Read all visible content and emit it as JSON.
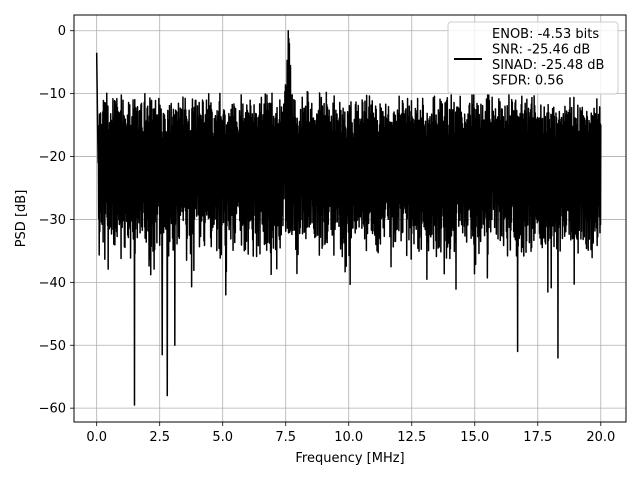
{
  "chart_data": {
    "type": "line",
    "title": "",
    "xlabel": "Frequency [MHz]",
    "ylabel": "PSD [dB]",
    "xlim": [
      -0.9,
      21.0
    ],
    "ylim": [
      -62.2,
      2.5
    ],
    "xticks": [
      0.0,
      2.5,
      5.0,
      7.5,
      10.0,
      12.5,
      15.0,
      17.5,
      20.0
    ],
    "xtick_labels": [
      "0.0",
      "2.5",
      "5.0",
      "7.5",
      "10.0",
      "12.5",
      "15.0",
      "17.5",
      "20.0"
    ],
    "yticks": [
      0,
      -10,
      -20,
      -30,
      -40,
      -50,
      -60
    ],
    "ytick_labels": [
      "0",
      "−10",
      "−20",
      "−30",
      "−40",
      "−50",
      "−60"
    ],
    "grid": true,
    "legend_position": "top-right",
    "series": [
      {
        "color": "#000000",
        "x_range": [
          0.0,
          20.0
        ],
        "upper_envelope_db": -12,
        "lower_envelope_db": -35,
        "features": [
          {
            "x": 0.0,
            "y": -3.5
          },
          {
            "x": 7.6,
            "y": 0.0
          },
          {
            "x": 1.5,
            "y": -59.5
          },
          {
            "x": 2.8,
            "y": -58.0
          },
          {
            "x": 2.6,
            "y": -51.5
          },
          {
            "x": 3.1,
            "y": -50.0
          },
          {
            "x": 16.7,
            "y": -51.0
          },
          {
            "x": 18.3,
            "y": -52.0
          }
        ]
      }
    ],
    "legend": {
      "lines": [
        "ENOB: -4.53 bits",
        "SNR: -25.46 dB",
        "SINAD: -25.48 dB",
        "SFDR: 0.56"
      ]
    }
  }
}
